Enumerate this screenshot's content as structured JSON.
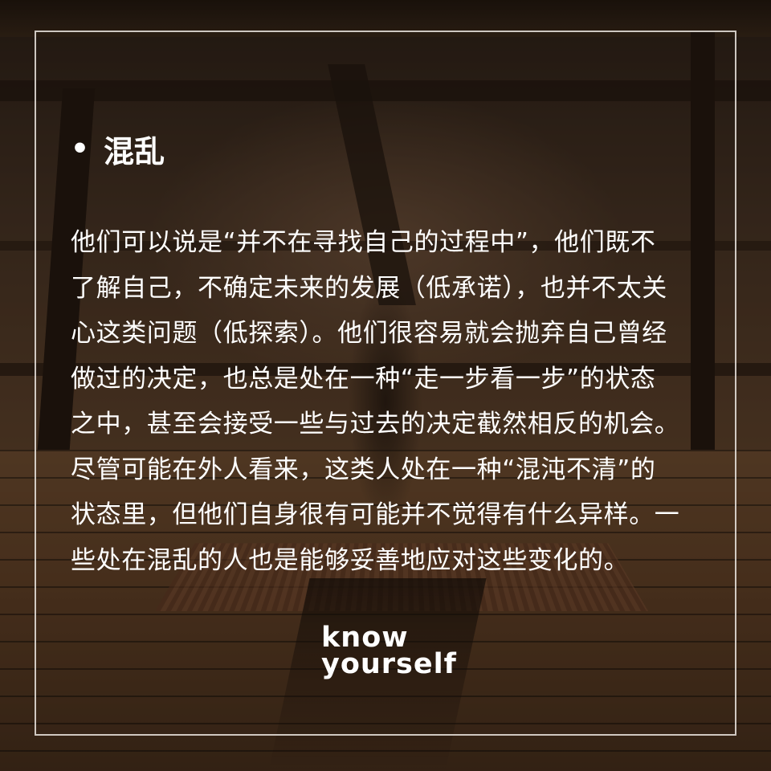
{
  "heading": {
    "bullet": "•",
    "title": "混乱"
  },
  "body": {
    "lines": [
      "他们可以说是“并不在寻找自己的过程中”，他们既不",
      "了解自己，不确定未来的发展（低承诺），也并不太关",
      "心这类问题（低探索）。他们很容易就会抛弃自己曾经",
      "做过的决定，也总是处在一种“走一步看一步”的状态",
      "之中，甚至会接受一些与过去的决定截然相反的机会。",
      "尽管可能在外人看来，这类人处在一种“混沌不清”的",
      "状态里，但他们自身很有可能并不觉得有什么异样。一",
      "些处在混乱的人也是能够妥善地应对这些变化的。"
    ]
  },
  "logo": {
    "line1": "know",
    "line2": "yourself"
  },
  "colors": {
    "text": "#ffffff",
    "frame": "#ebe6e0"
  }
}
